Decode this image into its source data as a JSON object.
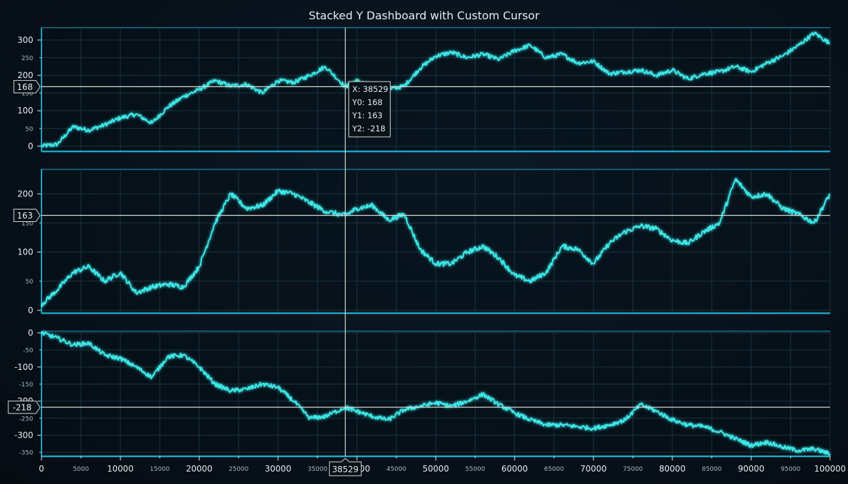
{
  "title": "Stacked Y Dashboard with Custom Cursor",
  "colors": {
    "background": "#08121c",
    "series": "#3de8e8",
    "axis": "#1ea7c7",
    "grid": "#1b3442",
    "text": "#e6eef3",
    "cursor": "#d9dcd6"
  },
  "cursor": {
    "x": 38529,
    "x_label": "38529",
    "tooltip": [
      "X: 38529",
      "Y0: 168",
      "Y1: 163",
      "Y2: -218"
    ],
    "y_labels": [
      "168",
      "163",
      "-218"
    ],
    "y_values": [
      168,
      163,
      -218
    ]
  },
  "chart_data": {
    "type": "line",
    "x_range": [
      0,
      100000
    ],
    "x_major_ticks": [
      "0",
      "10000",
      "20000",
      "30000",
      "40000",
      "50000",
      "60000",
      "70000",
      "80000",
      "90000",
      "100000"
    ],
    "x_minor_ticks": [
      "5000",
      "15000",
      "25000",
      "35000",
      "45000",
      "55000",
      "65000",
      "75000",
      "85000",
      "95000"
    ],
    "grid": true,
    "series": [
      {
        "ylim": [
          -15,
          335
        ],
        "y_major_ticks": [
          "0",
          "100",
          "200",
          "300"
        ],
        "y_minor_ticks": [
          "50",
          "150",
          "250"
        ],
        "x": [
          0,
          2000,
          4000,
          6000,
          8000,
          10000,
          12000,
          14000,
          16000,
          18000,
          20000,
          22000,
          24000,
          26000,
          28000,
          30000,
          32000,
          34000,
          36000,
          38529,
          40000,
          42000,
          44000,
          46000,
          48000,
          50000,
          52000,
          54000,
          56000,
          58000,
          60000,
          62000,
          64000,
          66000,
          68000,
          70000,
          72000,
          74000,
          76000,
          78000,
          80000,
          82000,
          84000,
          86000,
          88000,
          90000,
          92000,
          94000,
          96000,
          98000,
          100000
        ],
        "y": [
          0,
          5,
          55,
          45,
          60,
          80,
          90,
          65,
          110,
          140,
          160,
          185,
          170,
          175,
          150,
          185,
          180,
          200,
          225,
          168,
          185,
          165,
          160,
          170,
          220,
          255,
          265,
          250,
          260,
          245,
          270,
          285,
          250,
          260,
          235,
          240,
          205,
          210,
          215,
          200,
          215,
          190,
          205,
          210,
          225,
          210,
          235,
          255,
          285,
          320,
          290
        ]
      },
      {
        "ylim": [
          -5,
          242
        ],
        "y_major_ticks": [
          "0",
          "100",
          "200"
        ],
        "y_minor_ticks": [
          "50",
          "150"
        ],
        "x": [
          0,
          2000,
          4000,
          6000,
          8000,
          10000,
          12000,
          14000,
          16000,
          18000,
          20000,
          22000,
          24000,
          26000,
          28000,
          30000,
          32000,
          34000,
          36000,
          38529,
          40000,
          42000,
          44000,
          46000,
          48000,
          50000,
          52000,
          54000,
          56000,
          58000,
          60000,
          62000,
          64000,
          66000,
          68000,
          70000,
          72000,
          74000,
          76000,
          78000,
          80000,
          82000,
          84000,
          86000,
          88000,
          90000,
          92000,
          94000,
          96000,
          98000,
          100000
        ],
        "y": [
          10,
          35,
          65,
          75,
          50,
          65,
          30,
          40,
          45,
          40,
          75,
          150,
          200,
          175,
          180,
          205,
          200,
          185,
          170,
          163,
          175,
          180,
          155,
          165,
          105,
          80,
          80,
          100,
          110,
          90,
          60,
          50,
          65,
          110,
          105,
          80,
          115,
          135,
          145,
          140,
          120,
          115,
          135,
          150,
          225,
          195,
          200,
          175,
          165,
          150,
          200
        ]
      },
      {
        "ylim": [
          -362,
          5
        ],
        "y_major_ticks": [
          "0",
          "-100",
          "-200",
          "-300"
        ],
        "y_minor_ticks": [
          "-50",
          "-150",
          "-250",
          "-350"
        ],
        "x": [
          0,
          2000,
          4000,
          6000,
          8000,
          10000,
          12000,
          14000,
          16000,
          18000,
          20000,
          22000,
          24000,
          26000,
          28000,
          30000,
          32000,
          34000,
          36000,
          38529,
          40000,
          42000,
          44000,
          46000,
          48000,
          50000,
          52000,
          54000,
          56000,
          58000,
          60000,
          62000,
          64000,
          66000,
          68000,
          70000,
          72000,
          74000,
          76000,
          78000,
          80000,
          82000,
          84000,
          86000,
          88000,
          90000,
          92000,
          94000,
          96000,
          98000,
          100000
        ],
        "y": [
          0,
          -15,
          -35,
          -30,
          -65,
          -75,
          -100,
          -130,
          -70,
          -65,
          -100,
          -150,
          -170,
          -165,
          -150,
          -160,
          -200,
          -250,
          -245,
          -218,
          -230,
          -245,
          -255,
          -225,
          -215,
          -205,
          -215,
          -200,
          -180,
          -210,
          -235,
          -255,
          -270,
          -270,
          -275,
          -280,
          -270,
          -255,
          -210,
          -230,
          -255,
          -270,
          -275,
          -290,
          -310,
          -330,
          -320,
          -335,
          -345,
          -340,
          -355
        ]
      }
    ]
  }
}
